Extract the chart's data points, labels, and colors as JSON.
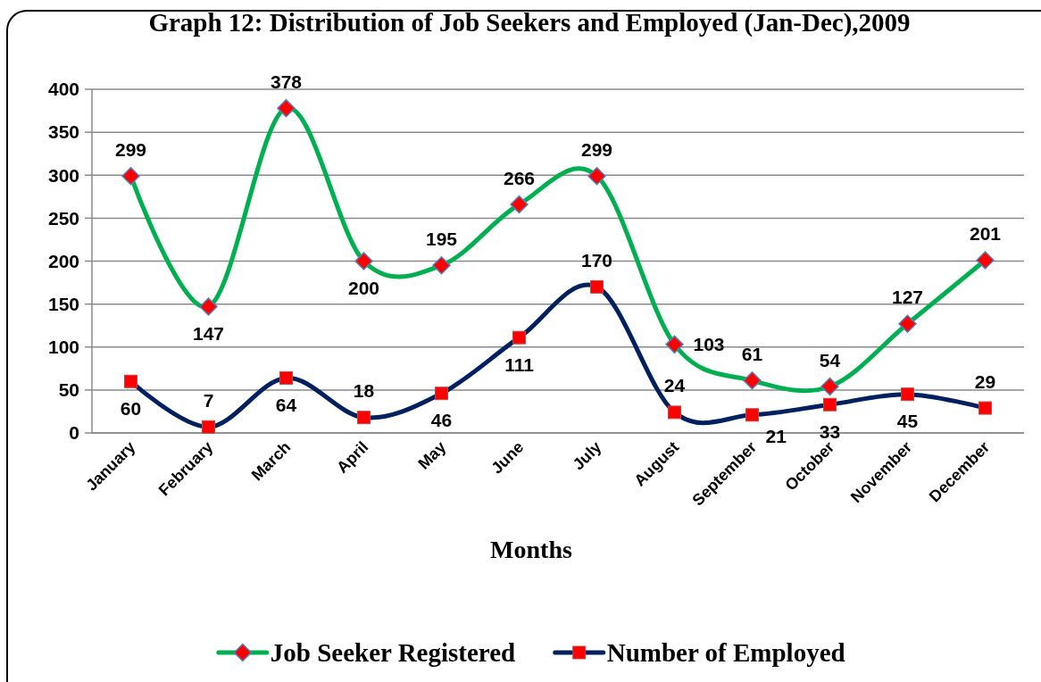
{
  "chart_data": {
    "type": "line",
    "title": "Graph 12: Distribution of Job Seekers and Employed (Jan-Dec),2009",
    "xlabel": "Months",
    "categories": [
      "January",
      "February",
      "March",
      "April",
      "May",
      "June",
      "July",
      "August",
      "September",
      "October",
      "November",
      "December"
    ],
    "series": [
      {
        "name": "Job Seeker Registered",
        "color": "#00b050",
        "colors": [
          "#ff0000",
          "#ff0000",
          "#ff0000",
          "#ff0000",
          "#ff0000",
          "#ff0000",
          "#ff0000",
          "#ff0000",
          "#ff0000",
          "#ff0000",
          "#ff0000",
          "#ff0000"
        ],
        "marker": "diamond",
        "values": [
          299,
          147,
          378,
          200,
          195,
          266,
          299,
          103,
          61,
          54,
          127,
          201
        ]
      },
      {
        "name": "Number of Employed",
        "color": "#002060",
        "colors": [
          "#ff0000",
          "#ff0000",
          "#ff0000",
          "#ff0000",
          "#ff0000",
          "#ff0000",
          "#ff0000",
          "#ff0000",
          "#ff0000",
          "#ff0000",
          "#ff0000",
          "#ff0000"
        ],
        "marker": "square",
        "values": [
          60,
          7,
          64,
          18,
          46,
          111,
          170,
          24,
          21,
          33,
          45,
          29
        ]
      }
    ],
    "ylim": [
      0,
      400
    ],
    "yticks": [
      0,
      50,
      100,
      150,
      200,
      250,
      300,
      350,
      400
    ],
    "grid": "y",
    "legend": "bottom",
    "data_labels": true,
    "line_style": "solid"
  }
}
